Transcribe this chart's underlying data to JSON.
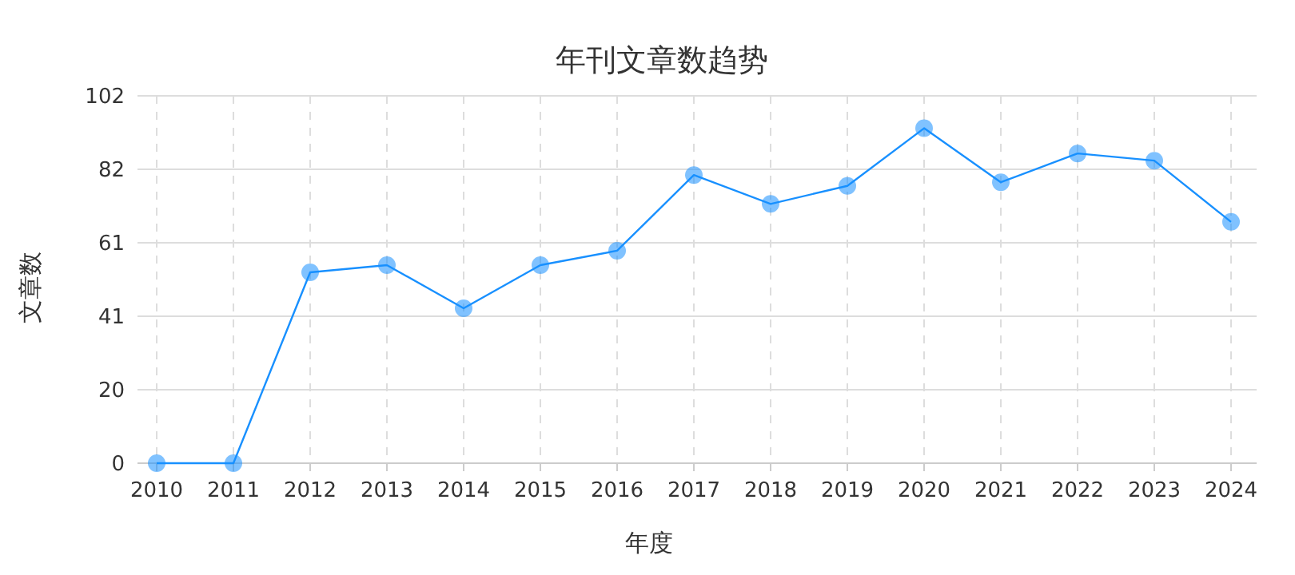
{
  "chart_data": {
    "type": "line",
    "title": "年刊文章数趋势",
    "xlabel": "年度",
    "ylabel": "文章数",
    "categories": [
      "2010",
      "2011",
      "2012",
      "2013",
      "2014",
      "2015",
      "2016",
      "2017",
      "2018",
      "2019",
      "2020",
      "2021",
      "2022",
      "2023",
      "2024"
    ],
    "series": [
      {
        "color": "#1890ff",
        "values": [
          0,
          0,
          53,
          55,
          43,
          55,
          59,
          80,
          72,
          77,
          93,
          78,
          86,
          84,
          67
        ]
      }
    ],
    "ylim": [
      0,
      102
    ],
    "yticks": [
      0,
      {
        "value": 20.4,
        "label": "20"
      },
      {
        "value": 40.8,
        "label": "41"
      },
      {
        "value": 61.2,
        "label": "61"
      },
      {
        "value": 81.6,
        "label": "82"
      },
      102
    ],
    "grid": true,
    "marker": "circle",
    "line_style": "solid"
  }
}
